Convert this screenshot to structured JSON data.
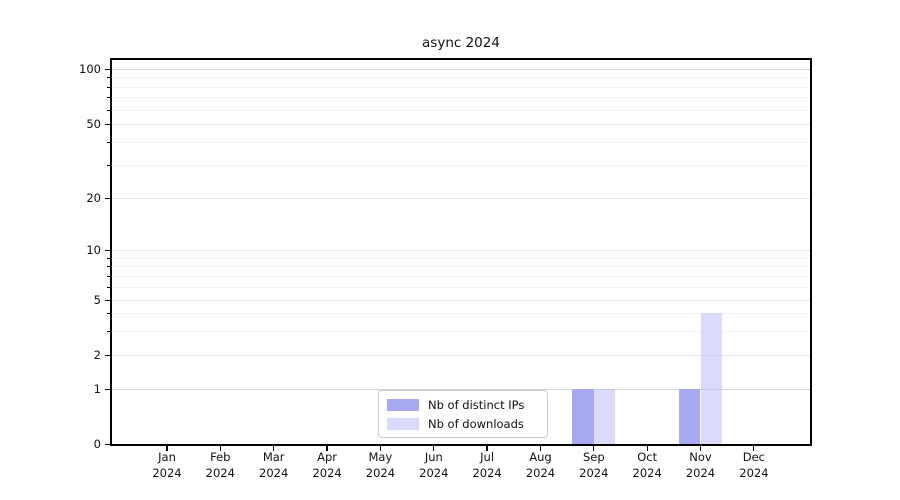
{
  "figure": {
    "background": "#ffffff",
    "border_color": "#000000",
    "grid_major_color": "#e7e7e7",
    "grid_minor_color": "#f4f4f4",
    "grid_strong_color": "#d4d4d4"
  },
  "chart_data": {
    "type": "bar",
    "title": "async 2024",
    "categories": [
      "Jan",
      "Feb",
      "Mar",
      "Apr",
      "May",
      "Jun",
      "Jul",
      "Aug",
      "Sep",
      "Oct",
      "Nov",
      "Dec"
    ],
    "category_year": "2024",
    "x_tick_labels": [
      "Jan\n2024",
      "Feb\n2024",
      "Mar\n2024",
      "Apr\n2024",
      "May\n2024",
      "Jun\n2024",
      "Jul\n2024",
      "Aug\n2024",
      "Sep\n2024",
      "Oct\n2024",
      "Nov\n2024",
      "Dec\n2024"
    ],
    "series": [
      {
        "name": "Nb of distinct IPs",
        "color": "#a9a9f1",
        "values": [
          0,
          0,
          0,
          0,
          0,
          0,
          0,
          0,
          1,
          0,
          1,
          0
        ]
      },
      {
        "name": "Nb of downloads",
        "color": "#dbdbf8",
        "values": [
          0,
          0,
          0,
          0,
          0,
          0,
          0,
          0,
          1,
          0,
          4,
          0
        ]
      }
    ],
    "y_axis": {
      "scale": "symlog",
      "tick_labels": [
        "0",
        "1",
        "2",
        "5",
        "10",
        "20",
        "50",
        "100"
      ],
      "ticks": [
        0,
        1,
        2,
        5,
        10,
        20,
        50,
        100
      ],
      "minor_ticks": [
        3,
        4,
        6,
        7,
        8,
        9,
        30,
        40,
        60,
        70,
        80,
        90
      ],
      "range": [
        0,
        100
      ]
    },
    "legend": {
      "position": "lower center",
      "entries": [
        "Nb of distinct IPs",
        "Nb of downloads"
      ]
    },
    "grid": "on"
  }
}
